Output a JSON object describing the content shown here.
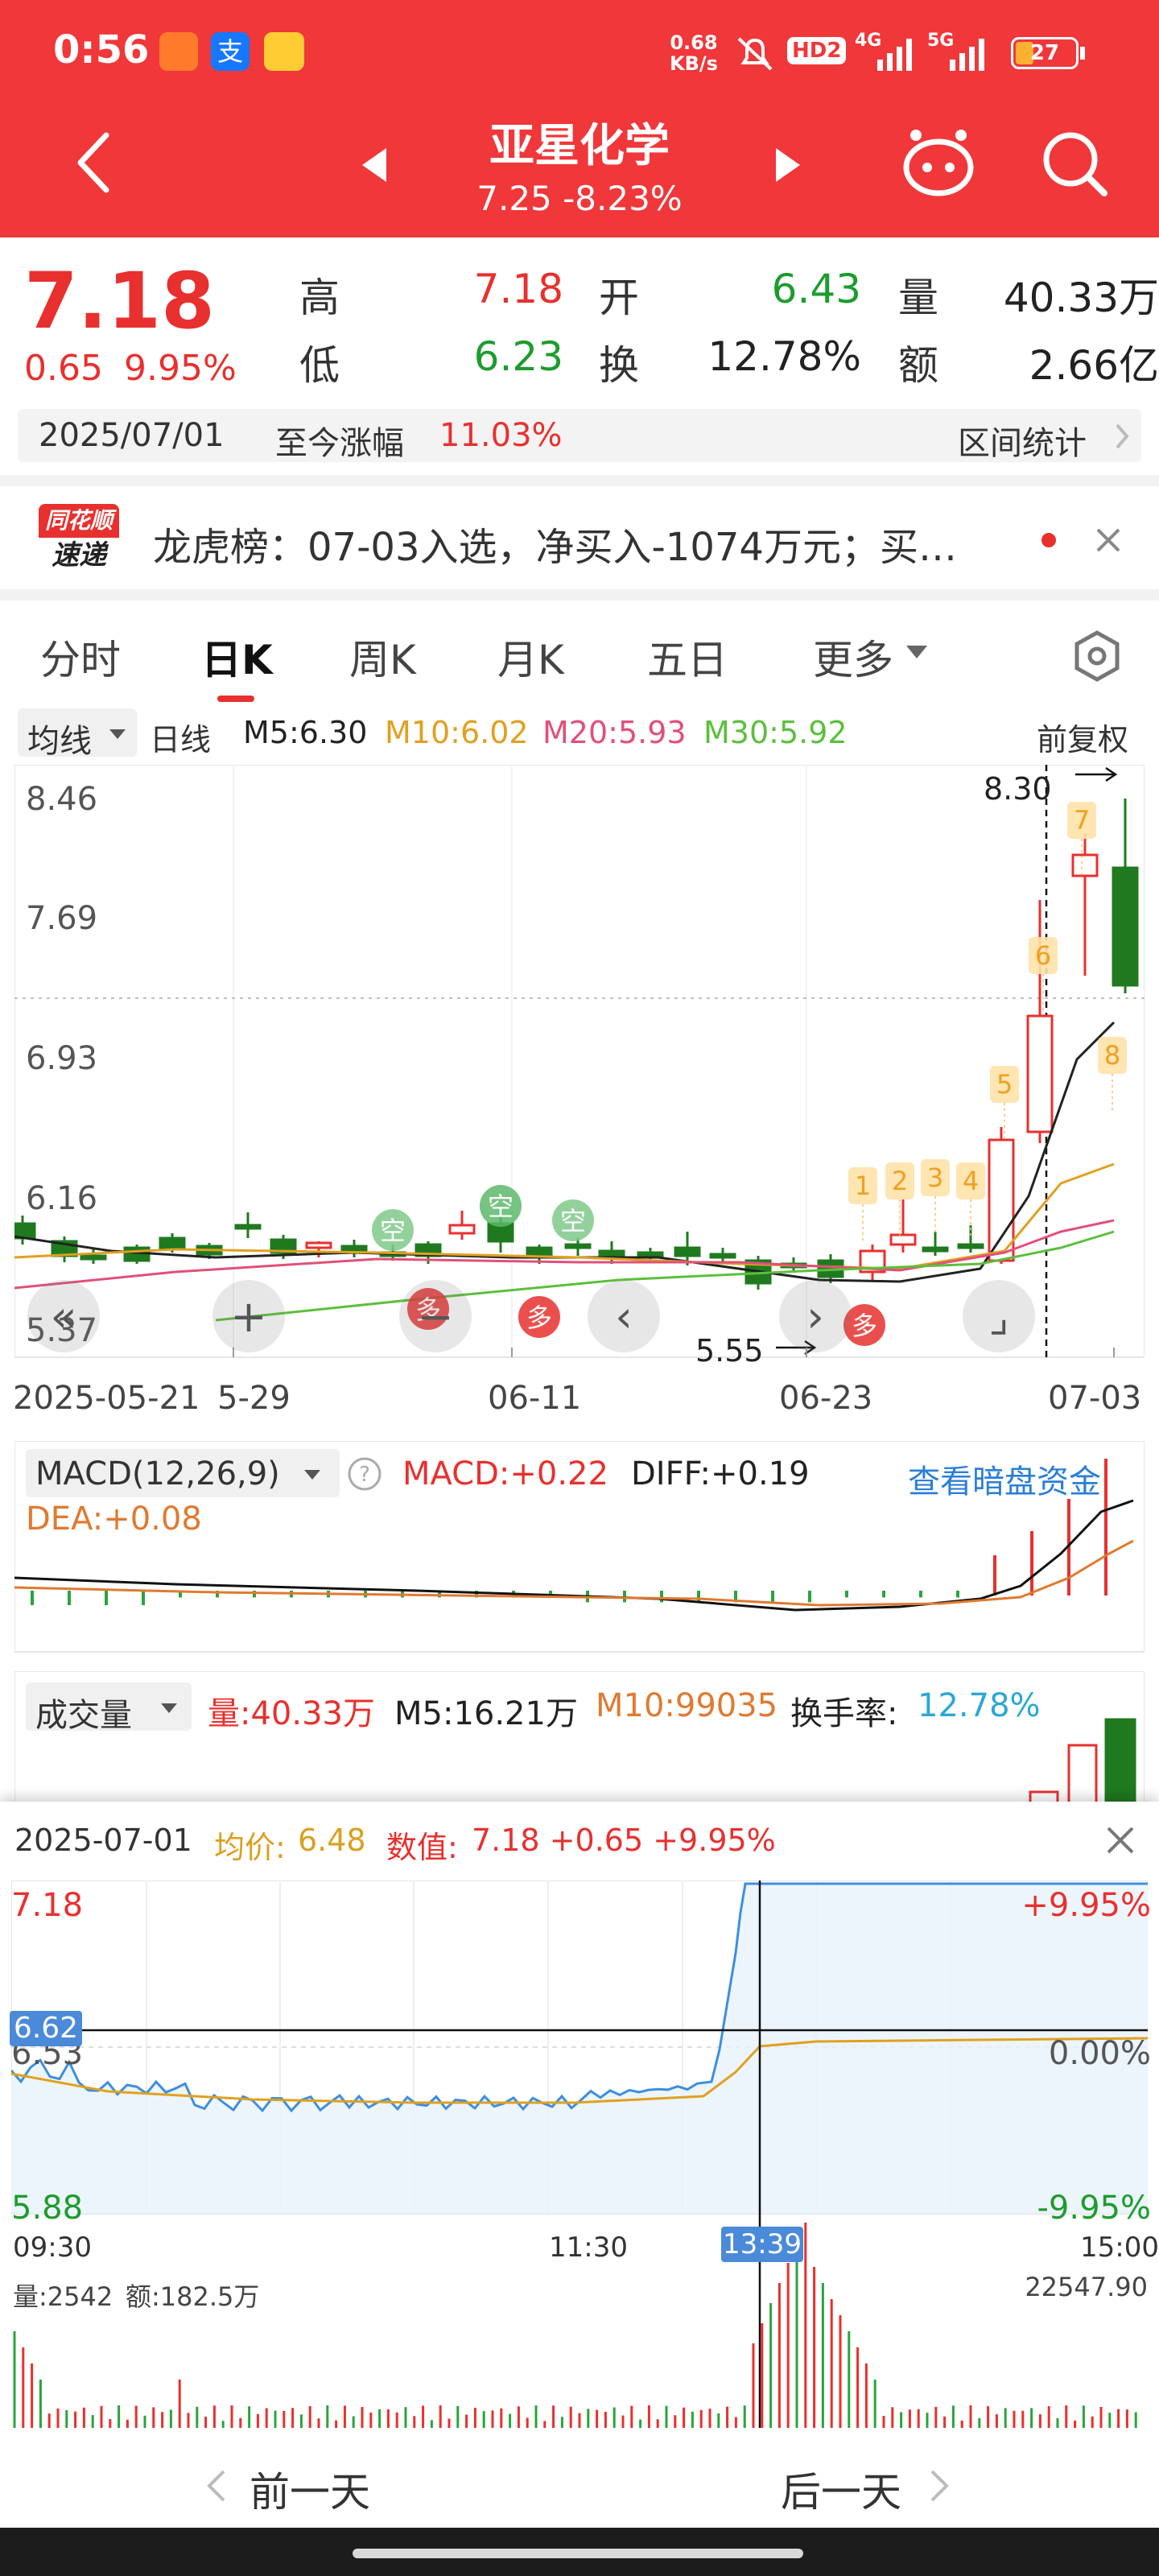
{
  "status_bar": {
    "time": "0:56",
    "net_speed_value": "0.68",
    "net_speed_unit": "KB/s",
    "hd": "HD2",
    "net_4g": "4G",
    "net_5g": "5G",
    "battery": "27"
  },
  "header": {
    "title": "亚星化学",
    "subtitle": "7.25 -8.23%"
  },
  "quote": {
    "price": "7.18",
    "change": "0.65",
    "change_pct": "9.95%",
    "high_label": "高",
    "high": "7.18",
    "open_label": "开",
    "open": "6.43",
    "volume_label": "量",
    "volume": "40.33万",
    "low_label": "低",
    "low": "6.23",
    "turnover_label": "换",
    "turnover": "12.78%",
    "amount_label": "额",
    "amount": "2.66亿",
    "date": "2025/07/01",
    "since_label": "至今涨幅",
    "since_value": "11.03%",
    "interval_stats": "区间统计"
  },
  "news": {
    "logo_line1": "同花顺",
    "logo_line2": "速递",
    "text": "龙虎榜：07-03入选，净买入-1074万元；买…"
  },
  "tabs": [
    "分时",
    "日K",
    "周K",
    "月K",
    "五日",
    "更多"
  ],
  "ma_bar": {
    "selector": "均线",
    "type": "日线",
    "m5": "M5:6.30",
    "m10": "M10:6.02",
    "m20": "M20:5.93",
    "m30": "M30:5.92",
    "adjust": "前复权"
  },
  "kline": {
    "y_labels": [
      "8.46",
      "7.69",
      "6.93",
      "6.16",
      "5.37"
    ],
    "max_label": "8.30",
    "min_label": "5.55",
    "dates": [
      "2025-05-21",
      "5-29",
      "06-11",
      "06-23",
      "07-03"
    ],
    "markers": [
      "空",
      "空",
      "空",
      "多",
      "多",
      "多"
    ],
    "counters": [
      "1",
      "2",
      "3",
      "4",
      "5",
      "6",
      "7",
      "8"
    ],
    "colors": {
      "up": "#e8302e",
      "down": "#1f7a1f",
      "m5": "#222222",
      "m10": "#e0a020",
      "m20": "#e0507a",
      "m30": "#5cbf3c"
    }
  },
  "macd": {
    "selector": "MACD(12,26,9)",
    "macd": "MACD:+0.22",
    "diff": "DIFF:+0.19",
    "dea": "DEA:+0.08",
    "link": "查看暗盘资金"
  },
  "volume_panel": {
    "selector": "成交量",
    "vol": "量:40.33万",
    "m5": "M5:16.21万",
    "m10": "M10:99035",
    "turnover_label": "换手率:",
    "turnover_value": "12.78%"
  },
  "intraday": {
    "date": "2025-07-01",
    "avg_label": "均价:",
    "avg": "6.48",
    "value_label": "数值:",
    "value": "7.18 +0.65 +9.95%",
    "y_top": "7.18",
    "y_mid": "6.53",
    "y_bottom": "5.88",
    "y_cursor": "6.62",
    "pct_top": "+9.95%",
    "pct_mid": "0.00%",
    "pct_bottom": "-9.95%",
    "times": [
      "09:30",
      "11:30",
      "13:39",
      "15:00"
    ],
    "vol_label": "量:2542",
    "amt_label": "额:182.5万",
    "vol_max": "22547.90",
    "prev_day": "前一天",
    "next_day": "后一天"
  }
}
